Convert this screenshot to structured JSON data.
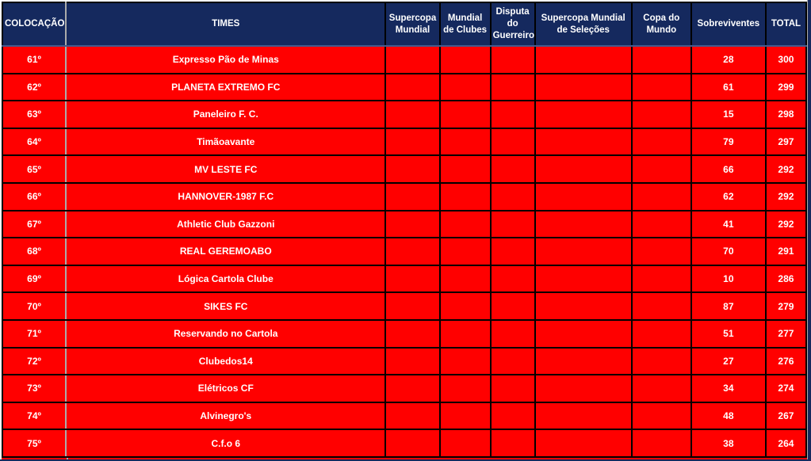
{
  "table": {
    "columns": [
      "COLOCAÇÃO",
      "TIMES",
      "Supercopa Mundial",
      "Mundial de Clubes",
      "Disputa do Guerreiro",
      "Supercopa Mundial de Seleções",
      "Copa do Mundo",
      "Sobreviventes",
      "TOTAL"
    ],
    "rows": [
      {
        "colocacao": "61º",
        "time": "Expresso Pão de Minas",
        "supercopa_mundial": "",
        "mundial_de_clubes": "",
        "disputa_do_guerreiro": "",
        "supercopa_mundial_de_selecoes": "",
        "copa_do_mundo": "",
        "sobreviventes": "28",
        "total": "300"
      },
      {
        "colocacao": "62º",
        "time": "PLANETA EXTREMO FC",
        "supercopa_mundial": "",
        "mundial_de_clubes": "",
        "disputa_do_guerreiro": "",
        "supercopa_mundial_de_selecoes": "",
        "copa_do_mundo": "",
        "sobreviventes": "61",
        "total": "299"
      },
      {
        "colocacao": "63º",
        "time": "Paneleiro F. C.",
        "supercopa_mundial": "",
        "mundial_de_clubes": "",
        "disputa_do_guerreiro": "",
        "supercopa_mundial_de_selecoes": "",
        "copa_do_mundo": "",
        "sobreviventes": "15",
        "total": "298"
      },
      {
        "colocacao": "64º",
        "time": "Timãoavante",
        "supercopa_mundial": "",
        "mundial_de_clubes": "",
        "disputa_do_guerreiro": "",
        "supercopa_mundial_de_selecoes": "",
        "copa_do_mundo": "",
        "sobreviventes": "79",
        "total": "297"
      },
      {
        "colocacao": "65º",
        "time": "MV LESTE FC",
        "supercopa_mundial": "",
        "mundial_de_clubes": "",
        "disputa_do_guerreiro": "",
        "supercopa_mundial_de_selecoes": "",
        "copa_do_mundo": "",
        "sobreviventes": "66",
        "total": "292"
      },
      {
        "colocacao": "66º",
        "time": "HANNOVER-1987 F.C",
        "supercopa_mundial": "",
        "mundial_de_clubes": "",
        "disputa_do_guerreiro": "",
        "supercopa_mundial_de_selecoes": "",
        "copa_do_mundo": "",
        "sobreviventes": "62",
        "total": "292"
      },
      {
        "colocacao": "67º",
        "time": "Athletic Club Gazzoni",
        "supercopa_mundial": "",
        "mundial_de_clubes": "",
        "disputa_do_guerreiro": "",
        "supercopa_mundial_de_selecoes": "",
        "copa_do_mundo": "",
        "sobreviventes": "41",
        "total": "292"
      },
      {
        "colocacao": "68º",
        "time": "REAL GEREMOABO",
        "supercopa_mundial": "",
        "mundial_de_clubes": "",
        "disputa_do_guerreiro": "",
        "supercopa_mundial_de_selecoes": "",
        "copa_do_mundo": "",
        "sobreviventes": "70",
        "total": "291"
      },
      {
        "colocacao": "69º",
        "time": "Lógica Cartola Clube",
        "supercopa_mundial": "",
        "mundial_de_clubes": "",
        "disputa_do_guerreiro": "",
        "supercopa_mundial_de_selecoes": "",
        "copa_do_mundo": "",
        "sobreviventes": "10",
        "total": "286"
      },
      {
        "colocacao": "70º",
        "time": "SIKES FC",
        "supercopa_mundial": "",
        "mundial_de_clubes": "",
        "disputa_do_guerreiro": "",
        "supercopa_mundial_de_selecoes": "",
        "copa_do_mundo": "",
        "sobreviventes": "87",
        "total": "279"
      },
      {
        "colocacao": "71º",
        "time": "Reservando no Cartola",
        "supercopa_mundial": "",
        "mundial_de_clubes": "",
        "disputa_do_guerreiro": "",
        "supercopa_mundial_de_selecoes": "",
        "copa_do_mundo": "",
        "sobreviventes": "51",
        "total": "277"
      },
      {
        "colocacao": "72º",
        "time": "Clubedos14",
        "supercopa_mundial": "",
        "mundial_de_clubes": "",
        "disputa_do_guerreiro": "",
        "supercopa_mundial_de_selecoes": "",
        "copa_do_mundo": "",
        "sobreviventes": "27",
        "total": "276"
      },
      {
        "colocacao": "73º",
        "time": "Elétricos CF",
        "supercopa_mundial": "",
        "mundial_de_clubes": "",
        "disputa_do_guerreiro": "",
        "supercopa_mundial_de_selecoes": "",
        "copa_do_mundo": "",
        "sobreviventes": "34",
        "total": "274"
      },
      {
        "colocacao": "74º",
        "time": "Alvinegro's",
        "supercopa_mundial": "",
        "mundial_de_clubes": "",
        "disputa_do_guerreiro": "",
        "supercopa_mundial_de_selecoes": "",
        "copa_do_mundo": "",
        "sobreviventes": "48",
        "total": "267"
      },
      {
        "colocacao": "75º",
        "time": "C.f.o 6",
        "supercopa_mundial": "",
        "mundial_de_clubes": "",
        "disputa_do_guerreiro": "",
        "supercopa_mundial_de_selecoes": "",
        "copa_do_mundo": "",
        "sobreviventes": "38",
        "total": "264"
      }
    ]
  },
  "colors": {
    "header_bg": "#15295E",
    "row_bg": "#FF0000",
    "text": "#FFFFFF",
    "border": "#000000",
    "gridline": "#ABABAB",
    "header_divider": "#44598C"
  }
}
